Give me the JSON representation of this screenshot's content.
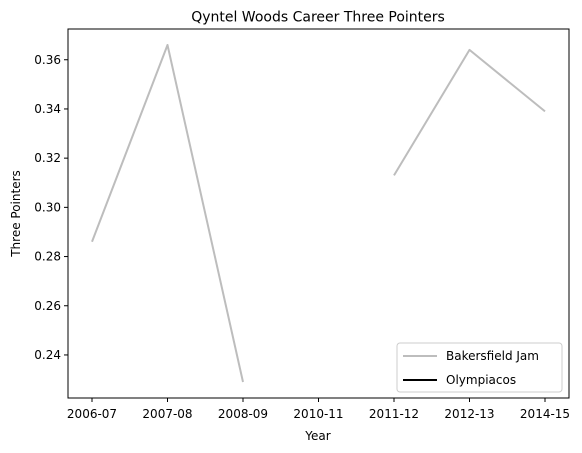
{
  "chart_data": {
    "type": "line",
    "title": "Qyntel Woods Career Three Pointers",
    "xlabel": "Year",
    "ylabel": "Three Pointers",
    "categories": [
      "2006-07",
      "2007-08",
      "2008-09",
      "2010-11",
      "2011-12",
      "2012-13",
      "2014-15"
    ],
    "ylim": [
      0.2225,
      0.3725
    ],
    "yticks": [
      0.24,
      0.26,
      0.28,
      0.3,
      0.32,
      0.34,
      0.36
    ],
    "ytick_labels": [
      "0.24",
      "0.26",
      "0.28",
      "0.30",
      "0.32",
      "0.34",
      "0.36"
    ],
    "grid": false,
    "legend": "lower-right",
    "series": [
      {
        "name": "Bakersfield Jam",
        "color": "#bdbdbd",
        "values": [
          0.286,
          0.366,
          0.229,
          null,
          0.313,
          0.364,
          0.339
        ]
      },
      {
        "name": "Olympiacos",
        "color": "#000000",
        "values": [
          null,
          null,
          null,
          null,
          null,
          null,
          null
        ]
      }
    ]
  }
}
